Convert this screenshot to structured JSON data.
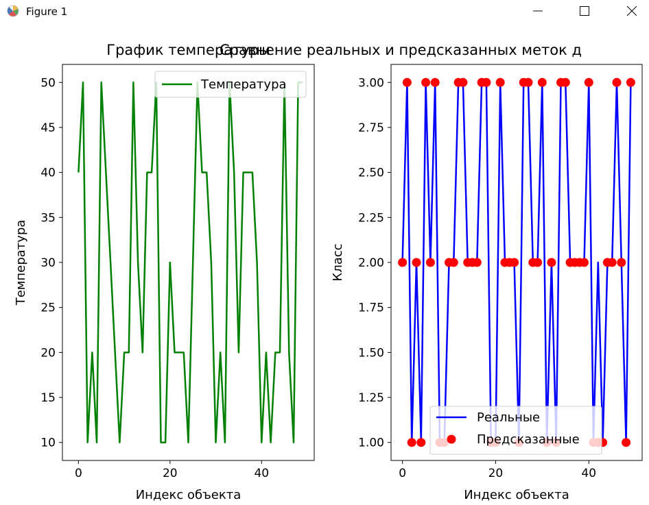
{
  "window": {
    "title": "Figure 1",
    "controls": [
      "minimize",
      "maximize",
      "close"
    ]
  },
  "chart_data": [
    {
      "type": "line",
      "title": "График температуры",
      "xlabel": "Индекс объекта",
      "ylabel": "Температура",
      "xlim": [
        -3.5,
        51.5
      ],
      "ylim": [
        8,
        52
      ],
      "xticks": [
        0,
        20,
        40
      ],
      "yticks": [
        10,
        15,
        20,
        25,
        30,
        35,
        40,
        45,
        50
      ],
      "legend_position": "top-right",
      "grid": false,
      "series": [
        {
          "name": "Температура",
          "color": "#008000",
          "x": [
            0,
            1,
            2,
            3,
            4,
            5,
            6,
            7,
            8,
            9,
            10,
            11,
            12,
            13,
            14,
            15,
            16,
            17,
            18,
            19,
            20,
            21,
            22,
            23,
            24,
            25,
            26,
            27,
            28,
            29,
            30,
            31,
            32,
            33,
            34,
            35,
            36,
            37,
            38,
            39,
            40,
            41,
            42,
            43,
            44,
            45,
            46,
            47,
            48,
            49
          ],
          "values": [
            40,
            50,
            10,
            20,
            10,
            50,
            40,
            30,
            20,
            10,
            20,
            20,
            50,
            30,
            20,
            40,
            40,
            50,
            10,
            10,
            30,
            20,
            20,
            20,
            10,
            30,
            50,
            40,
            40,
            30,
            10,
            20,
            10,
            50,
            40,
            20,
            40,
            40,
            40,
            30,
            10,
            20,
            10,
            20,
            20,
            50,
            20,
            10,
            50,
            50
          ]
        }
      ]
    },
    {
      "type": "line",
      "title": "Сравнение реальных и предсказанных меток д",
      "xlabel": "Индекс объекта",
      "ylabel": "Класс",
      "xlim": [
        -2.45,
        51.45
      ],
      "ylim": [
        0.9,
        3.1
      ],
      "xticks": [
        0,
        20,
        40
      ],
      "yticks": [
        "1.00",
        "1.25",
        "1.50",
        "1.75",
        "2.00",
        "2.25",
        "2.50",
        "2.75",
        "3.00"
      ],
      "legend_position": "lower-right",
      "grid": false,
      "series": [
        {
          "name": "Реальные",
          "kind": "line",
          "color": "#0000ff",
          "x": [
            0,
            1,
            2,
            3,
            4,
            5,
            6,
            7,
            8,
            9,
            10,
            11,
            12,
            13,
            14,
            15,
            16,
            17,
            18,
            19,
            20,
            21,
            22,
            23,
            24,
            25,
            26,
            27,
            28,
            29,
            30,
            31,
            32,
            33,
            34,
            35,
            36,
            37,
            38,
            39,
            40,
            41,
            42,
            43,
            44,
            45,
            46,
            47,
            48,
            49
          ],
          "values": [
            2,
            3,
            1,
            2,
            1,
            3,
            2,
            3,
            1,
            1,
            2,
            2,
            3,
            3,
            2,
            2,
            2,
            3,
            3,
            1,
            1,
            3,
            2,
            2,
            2,
            1,
            3,
            3,
            2,
            2,
            3,
            1,
            2,
            1,
            3,
            3,
            2,
            2,
            2,
            2,
            3,
            1,
            2,
            1,
            2,
            2,
            3,
            2,
            1,
            3
          ]
        },
        {
          "name": "Предсказанные",
          "kind": "scatter",
          "color": "#ff0000",
          "x": [
            0,
            1,
            2,
            3,
            4,
            5,
            6,
            7,
            8,
            9,
            10,
            11,
            12,
            13,
            14,
            15,
            16,
            17,
            18,
            19,
            20,
            21,
            22,
            23,
            24,
            25,
            26,
            27,
            28,
            29,
            30,
            31,
            32,
            33,
            34,
            35,
            36,
            37,
            38,
            39,
            40,
            41,
            42,
            43,
            44,
            45,
            46,
            47,
            48,
            49
          ],
          "values": [
            2,
            3,
            1,
            2,
            1,
            3,
            2,
            3,
            1,
            1,
            2,
            2,
            3,
            3,
            2,
            2,
            2,
            3,
            3,
            1,
            1,
            3,
            2,
            2,
            2,
            1,
            3,
            3,
            2,
            2,
            3,
            1,
            2,
            1,
            3,
            3,
            2,
            2,
            2,
            2,
            3,
            1,
            1,
            1,
            2,
            2,
            3,
            2,
            1,
            3
          ]
        }
      ]
    }
  ]
}
